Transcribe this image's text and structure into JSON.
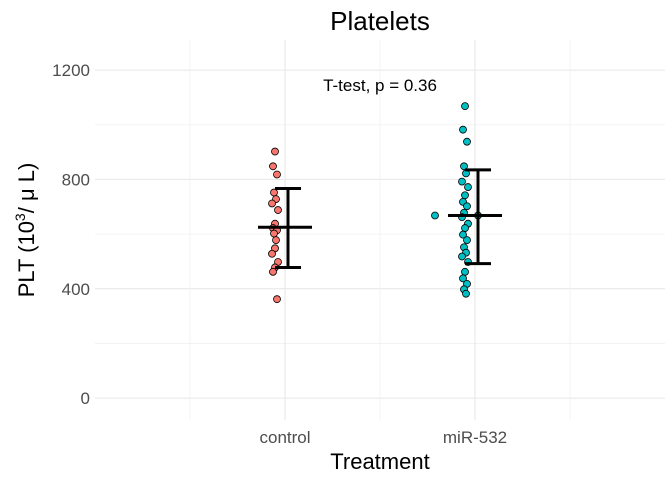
{
  "chart_data": {
    "type": "scatter",
    "title": "Platelets",
    "xlabel": "Treatment",
    "ylabel": {
      "prefix": "PLT (10",
      "sup": "3",
      "suffix": "/ μ L)"
    },
    "ylim": [
      -80,
      1310
    ],
    "yticks": [
      0,
      400,
      800,
      1200
    ],
    "ytick_labels": [
      "0",
      "400",
      "800",
      "1200"
    ],
    "categories": [
      "control",
      "miR-532"
    ],
    "grid": true,
    "legend": "none",
    "annotation": "T-test, p = 0.36",
    "series": [
      {
        "category": "control",
        "color": "#F8766D",
        "mean": 625,
        "error_low": 478,
        "error_high": 767,
        "values": [
          902,
          848,
          818,
          752,
          728,
          712,
          688,
          638,
          622,
          614,
          602,
          578,
          548,
          528,
          498,
          478,
          462,
          362
        ]
      },
      {
        "category": "miR-532",
        "color": "#00BFC4",
        "mean": 668,
        "error_low": 492,
        "error_high": 835,
        "values": [
          1068,
          982,
          938,
          848,
          822,
          792,
          772,
          742,
          718,
          702,
          678,
          668,
          668,
          662,
          638,
          622,
          598,
          578,
          552,
          532,
          518,
          498,
          462,
          438,
          418,
          398,
          382
        ]
      }
    ]
  }
}
